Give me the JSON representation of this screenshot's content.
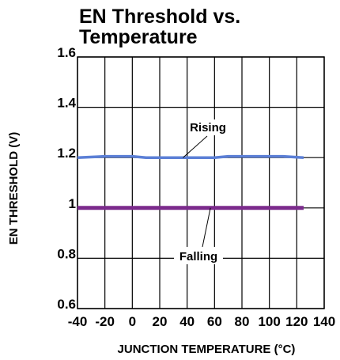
{
  "chart_data": {
    "type": "line",
    "title_lines": [
      "EN Threshold vs.",
      "Temperature"
    ],
    "xlabel": "JUNCTION TEMPERATURE (°C)",
    "ylabel": "EN THRESHOLD (V)",
    "xlim": [
      -40,
      140
    ],
    "ylim": [
      0.6,
      1.6
    ],
    "x_ticks": [
      -40,
      -20,
      0,
      20,
      40,
      60,
      80,
      100,
      120,
      140
    ],
    "x_tick_labels": [
      "-40",
      "-20",
      "0",
      "20",
      "40",
      "60",
      "80",
      "100",
      "120",
      "140"
    ],
    "y_ticks": [
      0.6,
      0.8,
      1,
      1.2,
      1.4,
      1.6
    ],
    "y_tick_labels": [
      "0.6",
      "0.8",
      "1",
      "1.2",
      "1.4",
      "1.6"
    ],
    "grid": true,
    "series": [
      {
        "name": "Rising",
        "color": "#5b7fd6",
        "x": [
          -40,
          -20,
          0,
          10,
          20,
          40,
          60,
          70,
          80,
          100,
          110,
          125
        ],
        "y": [
          1.2,
          1.205,
          1.205,
          1.2,
          1.2,
          1.2,
          1.2,
          1.205,
          1.205,
          1.205,
          1.205,
          1.2
        ]
      },
      {
        "name": "Falling",
        "color": "#7b2a8c",
        "x": [
          -40,
          125
        ],
        "y": [
          1.0,
          1.0
        ]
      }
    ],
    "annotations": [
      {
        "text": "Rising",
        "series": "Rising",
        "anchor": [
          37,
          1.2
        ]
      },
      {
        "text": "Falling",
        "series": "Falling",
        "anchor": [
          57,
          1.0
        ]
      }
    ]
  }
}
